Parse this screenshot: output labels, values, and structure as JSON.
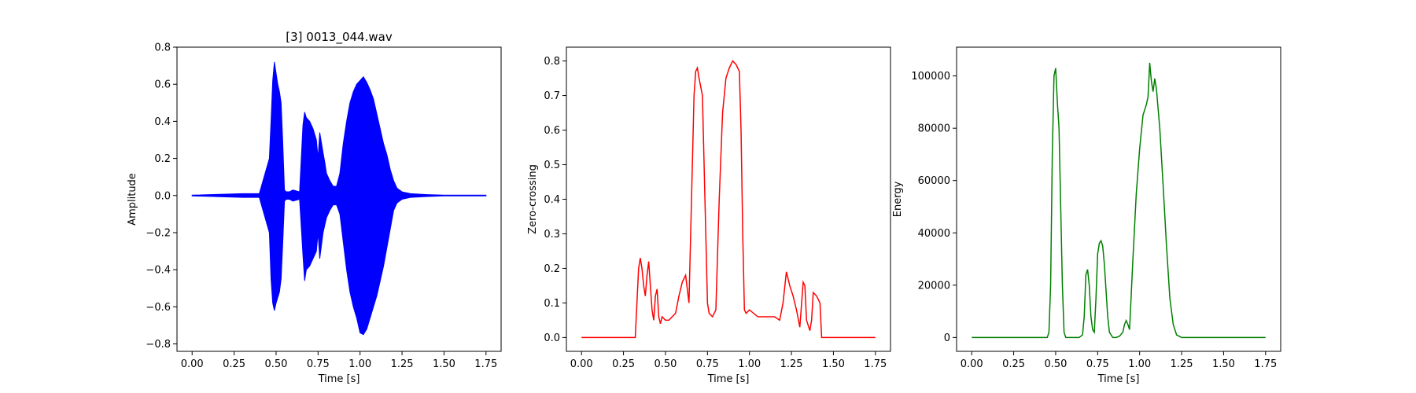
{
  "chart_data": [
    {
      "type": "line",
      "title": "[3] 0013_044.wav",
      "xlabel": "Time [s]",
      "ylabel": "Amplitude",
      "xlim": [
        -0.09,
        1.84
      ],
      "ylim": [
        -0.84,
        0.8
      ],
      "xticks": [
        0.0,
        0.25,
        0.5,
        0.75,
        1.0,
        1.25,
        1.5,
        1.75
      ],
      "xtick_labels": [
        "0.00",
        "0.25",
        "0.50",
        "0.75",
        "1.00",
        "1.25",
        "1.50",
        "1.75"
      ],
      "yticks": [
        -0.8,
        -0.6,
        -0.4,
        -0.2,
        0.0,
        0.2,
        0.4,
        0.6,
        0.8
      ],
      "ytick_labels": [
        "−0.8",
        "−0.6",
        "−0.4",
        "−0.2",
        "0.0",
        "0.2",
        "0.4",
        "0.6",
        "0.8"
      ],
      "color": "#0000ff",
      "series": [
        {
          "x": [
            0.0,
            0.3,
            0.4,
            0.46,
            0.47,
            0.48,
            0.49,
            0.5,
            0.51,
            0.52,
            0.53,
            0.54,
            0.55,
            0.56,
            0.58,
            0.6,
            0.64,
            0.66,
            0.67,
            0.68,
            0.7,
            0.72,
            0.74,
            0.75,
            0.76,
            0.78,
            0.79,
            0.8,
            0.82,
            0.84,
            0.86,
            0.88,
            0.9,
            0.92,
            0.94,
            0.96,
            0.98,
            1.0,
            1.02,
            1.04,
            1.06,
            1.08,
            1.1,
            1.12,
            1.14,
            1.16,
            1.18,
            1.2,
            1.22,
            1.25,
            1.3,
            1.4,
            1.5,
            1.75
          ],
          "env_max": [
            0.002,
            0.01,
            0.01,
            0.2,
            0.4,
            0.62,
            0.72,
            0.66,
            0.6,
            0.56,
            0.5,
            0.28,
            0.03,
            0.02,
            0.02,
            0.03,
            0.02,
            0.38,
            0.45,
            0.42,
            0.4,
            0.36,
            0.3,
            0.2,
            0.34,
            0.23,
            0.18,
            0.12,
            0.08,
            0.05,
            0.05,
            0.12,
            0.28,
            0.4,
            0.5,
            0.56,
            0.6,
            0.62,
            0.64,
            0.61,
            0.57,
            0.52,
            0.44,
            0.36,
            0.28,
            0.22,
            0.14,
            0.08,
            0.04,
            0.02,
            0.01,
            0.005,
            0.002,
            0.002
          ],
          "env_min": [
            -0.002,
            -0.01,
            -0.01,
            -0.2,
            -0.45,
            -0.58,
            -0.62,
            -0.58,
            -0.55,
            -0.52,
            -0.45,
            -0.25,
            -0.03,
            -0.02,
            -0.02,
            -0.03,
            -0.02,
            -0.32,
            -0.46,
            -0.4,
            -0.38,
            -0.34,
            -0.3,
            -0.2,
            -0.34,
            -0.2,
            -0.16,
            -0.12,
            -0.08,
            -0.05,
            -0.05,
            -0.1,
            -0.25,
            -0.4,
            -0.52,
            -0.6,
            -0.66,
            -0.74,
            -0.75,
            -0.72,
            -0.66,
            -0.6,
            -0.54,
            -0.46,
            -0.38,
            -0.28,
            -0.18,
            -0.08,
            -0.04,
            -0.02,
            -0.01,
            -0.005,
            -0.002,
            -0.002
          ]
        }
      ]
    },
    {
      "type": "line",
      "title": "",
      "xlabel": "Time [s]",
      "ylabel": "Zero-crossing",
      "xlim": [
        -0.09,
        1.84
      ],
      "ylim": [
        -0.04,
        0.84
      ],
      "xticks": [
        0.0,
        0.25,
        0.5,
        0.75,
        1.0,
        1.25,
        1.5,
        1.75
      ],
      "xtick_labels": [
        "0.00",
        "0.25",
        "0.50",
        "0.75",
        "1.00",
        "1.25",
        "1.50",
        "1.75"
      ],
      "yticks": [
        0.0,
        0.1,
        0.2,
        0.3,
        0.4,
        0.5,
        0.6,
        0.7,
        0.8
      ],
      "ytick_labels": [
        "0.0",
        "0.1",
        "0.2",
        "0.3",
        "0.4",
        "0.5",
        "0.6",
        "0.7",
        "0.8"
      ],
      "color": "#ff0000",
      "series": [
        {
          "x": [
            0.0,
            0.32,
            0.33,
            0.34,
            0.35,
            0.36,
            0.37,
            0.38,
            0.39,
            0.4,
            0.41,
            0.42,
            0.43,
            0.44,
            0.45,
            0.46,
            0.47,
            0.48,
            0.5,
            0.52,
            0.54,
            0.56,
            0.58,
            0.6,
            0.62,
            0.64,
            0.65,
            0.66,
            0.67,
            0.68,
            0.69,
            0.7,
            0.72,
            0.74,
            0.75,
            0.76,
            0.78,
            0.8,
            0.82,
            0.84,
            0.85,
            0.86,
            0.88,
            0.9,
            0.92,
            0.94,
            0.95,
            0.96,
            0.97,
            0.98,
            1.0,
            1.05,
            1.1,
            1.15,
            1.18,
            1.2,
            1.22,
            1.24,
            1.26,
            1.28,
            1.3,
            1.32,
            1.33,
            1.34,
            1.36,
            1.37,
            1.38,
            1.4,
            1.42,
            1.43,
            1.75
          ],
          "y": [
            0.0,
            0.0,
            0.1,
            0.2,
            0.23,
            0.2,
            0.15,
            0.12,
            0.18,
            0.22,
            0.15,
            0.08,
            0.05,
            0.12,
            0.14,
            0.06,
            0.04,
            0.06,
            0.05,
            0.05,
            0.06,
            0.07,
            0.12,
            0.16,
            0.18,
            0.1,
            0.3,
            0.5,
            0.7,
            0.77,
            0.78,
            0.75,
            0.7,
            0.3,
            0.1,
            0.07,
            0.06,
            0.08,
            0.4,
            0.65,
            0.7,
            0.75,
            0.78,
            0.8,
            0.79,
            0.77,
            0.6,
            0.3,
            0.08,
            0.07,
            0.08,
            0.06,
            0.06,
            0.06,
            0.05,
            0.1,
            0.19,
            0.15,
            0.12,
            0.08,
            0.03,
            0.16,
            0.15,
            0.05,
            0.02,
            0.05,
            0.13,
            0.12,
            0.1,
            0.0,
            0.0
          ]
        }
      ]
    },
    {
      "type": "line",
      "title": "",
      "xlabel": "Time [s]",
      "ylabel": "Energy",
      "xlim": [
        -0.09,
        1.84
      ],
      "ylim": [
        -5300,
        111000
      ],
      "xticks": [
        0.0,
        0.25,
        0.5,
        0.75,
        1.0,
        1.25,
        1.5,
        1.75
      ],
      "xtick_labels": [
        "0.00",
        "0.25",
        "0.50",
        "0.75",
        "1.00",
        "1.25",
        "1.50",
        "1.75"
      ],
      "yticks": [
        0,
        20000,
        40000,
        60000,
        80000,
        100000
      ],
      "ytick_labels": [
        "0",
        "20000",
        "40000",
        "60000",
        "80000",
        "100000"
      ],
      "color": "#008000",
      "series": [
        {
          "x": [
            0.0,
            0.45,
            0.46,
            0.47,
            0.48,
            0.49,
            0.5,
            0.51,
            0.52,
            0.53,
            0.54,
            0.55,
            0.56,
            0.6,
            0.64,
            0.66,
            0.67,
            0.68,
            0.69,
            0.7,
            0.71,
            0.72,
            0.73,
            0.74,
            0.75,
            0.76,
            0.77,
            0.78,
            0.79,
            0.8,
            0.81,
            0.82,
            0.84,
            0.86,
            0.88,
            0.9,
            0.91,
            0.92,
            0.93,
            0.94,
            0.96,
            0.98,
            1.0,
            1.02,
            1.04,
            1.05,
            1.06,
            1.07,
            1.08,
            1.09,
            1.1,
            1.12,
            1.14,
            1.16,
            1.18,
            1.2,
            1.22,
            1.25,
            1.3,
            1.75
          ],
          "y": [
            0,
            0,
            2000,
            20000,
            70000,
            100000,
            103000,
            90000,
            80000,
            50000,
            20000,
            2000,
            0,
            0,
            0,
            1000,
            8000,
            24000,
            26000,
            20000,
            8000,
            3000,
            2000,
            15000,
            32000,
            36000,
            37000,
            35000,
            28000,
            18000,
            8000,
            2000,
            0,
            0,
            500,
            2000,
            5000,
            6500,
            5000,
            3000,
            30000,
            55000,
            72000,
            85000,
            89000,
            92000,
            105000,
            98000,
            94000,
            99000,
            95000,
            80000,
            58000,
            35000,
            15000,
            5000,
            1000,
            0,
            0,
            0
          ]
        }
      ]
    }
  ]
}
